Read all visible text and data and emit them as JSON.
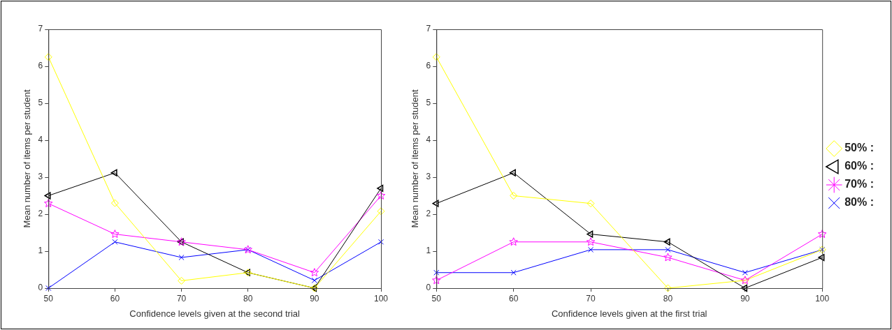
{
  "chart_data": [
    {
      "type": "line",
      "xlabel": "Confidence levels given at the second trial",
      "ylabel": "Mean number of items per student",
      "x": [
        50,
        60,
        70,
        80,
        90,
        100
      ],
      "xlim": [
        50,
        100
      ],
      "xticks": [
        50,
        60,
        70,
        80,
        90,
        100
      ],
      "ylim": [
        0,
        7
      ],
      "yticks": [
        0,
        1,
        2,
        3,
        4,
        5,
        6,
        7
      ],
      "grid": false,
      "legend": false,
      "series": [
        {
          "color": "#ffff00",
          "marker": "diamond",
          "values": [
            6.25,
            2.3,
            0.2,
            0.42,
            0,
            2.08
          ]
        },
        {
          "color": "#000000",
          "marker": "triangle",
          "values": [
            2.5,
            3.12,
            1.25,
            0.42,
            0,
            2.7
          ]
        },
        {
          "color": "#ff00ff",
          "marker": "star",
          "values": [
            2.29,
            1.46,
            1.25,
            1.04,
            0.42,
            2.5
          ]
        },
        {
          "color": "#0000ff",
          "marker": "cross",
          "values": [
            0,
            1.25,
            0.83,
            1.04,
            0.21,
            1.25
          ]
        }
      ]
    },
    {
      "type": "line",
      "xlabel": "Confidence levels given at the first trial",
      "ylabel": "Mean number of items per student",
      "x": [
        50,
        60,
        70,
        80,
        90,
        100
      ],
      "xlim": [
        50,
        100
      ],
      "xticks": [
        50,
        60,
        70,
        80,
        90,
        100
      ],
      "ylim": [
        0,
        7
      ],
      "yticks": [
        0,
        1,
        2,
        3,
        4,
        5,
        6,
        7
      ],
      "grid": false,
      "legend": "right",
      "series": [
        {
          "name": "50% :",
          "color": "#ffff00",
          "marker": "diamond",
          "values": [
            6.25,
            2.5,
            2.29,
            0,
            0.21,
            1.04
          ]
        },
        {
          "name": "60% :",
          "color": "#000000",
          "marker": "triangle",
          "values": [
            2.29,
            3.12,
            1.46,
            1.25,
            0,
            0.83
          ]
        },
        {
          "name": "70% :",
          "color": "#ff00ff",
          "marker": "star",
          "values": [
            0.21,
            1.25,
            1.25,
            0.83,
            0.21,
            1.46
          ]
        },
        {
          "name": "80% :",
          "color": "#0000ff",
          "marker": "cross",
          "values": [
            0.42,
            0.42,
            1.04,
            1.04,
            0.42,
            1.04
          ]
        }
      ]
    }
  ]
}
